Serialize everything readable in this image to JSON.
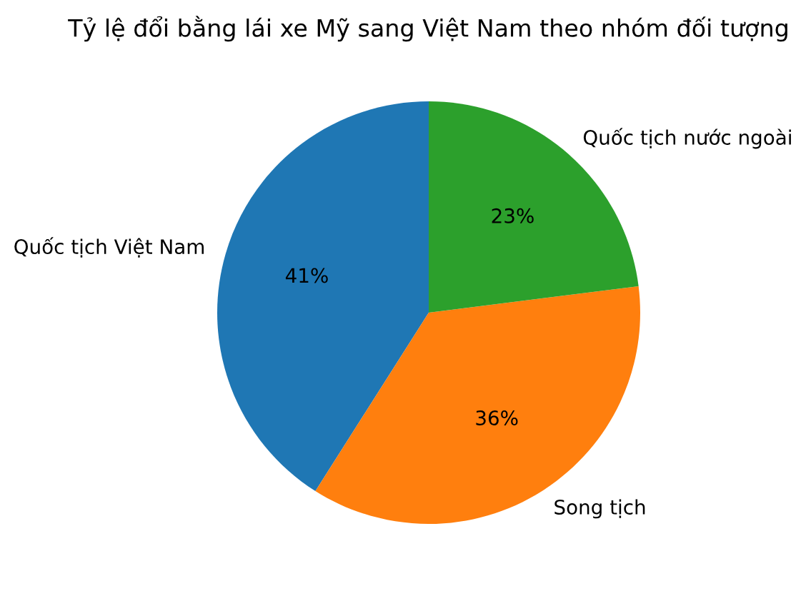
{
  "chart_data": {
    "type": "pie",
    "title": "Tỷ lệ đổi bằng lái xe Mỹ sang Việt Nam theo nhóm đối tượng",
    "categories": [
      "Quốc tịch Việt Nam",
      "Song tịch",
      "Quốc tịch nước ngoài"
    ],
    "values": [
      41,
      36,
      23
    ],
    "colors": [
      "#1f77b4",
      "#ff7f0e",
      "#2ca02c"
    ],
    "value_labels": [
      "41%",
      "36%",
      "23%"
    ]
  }
}
